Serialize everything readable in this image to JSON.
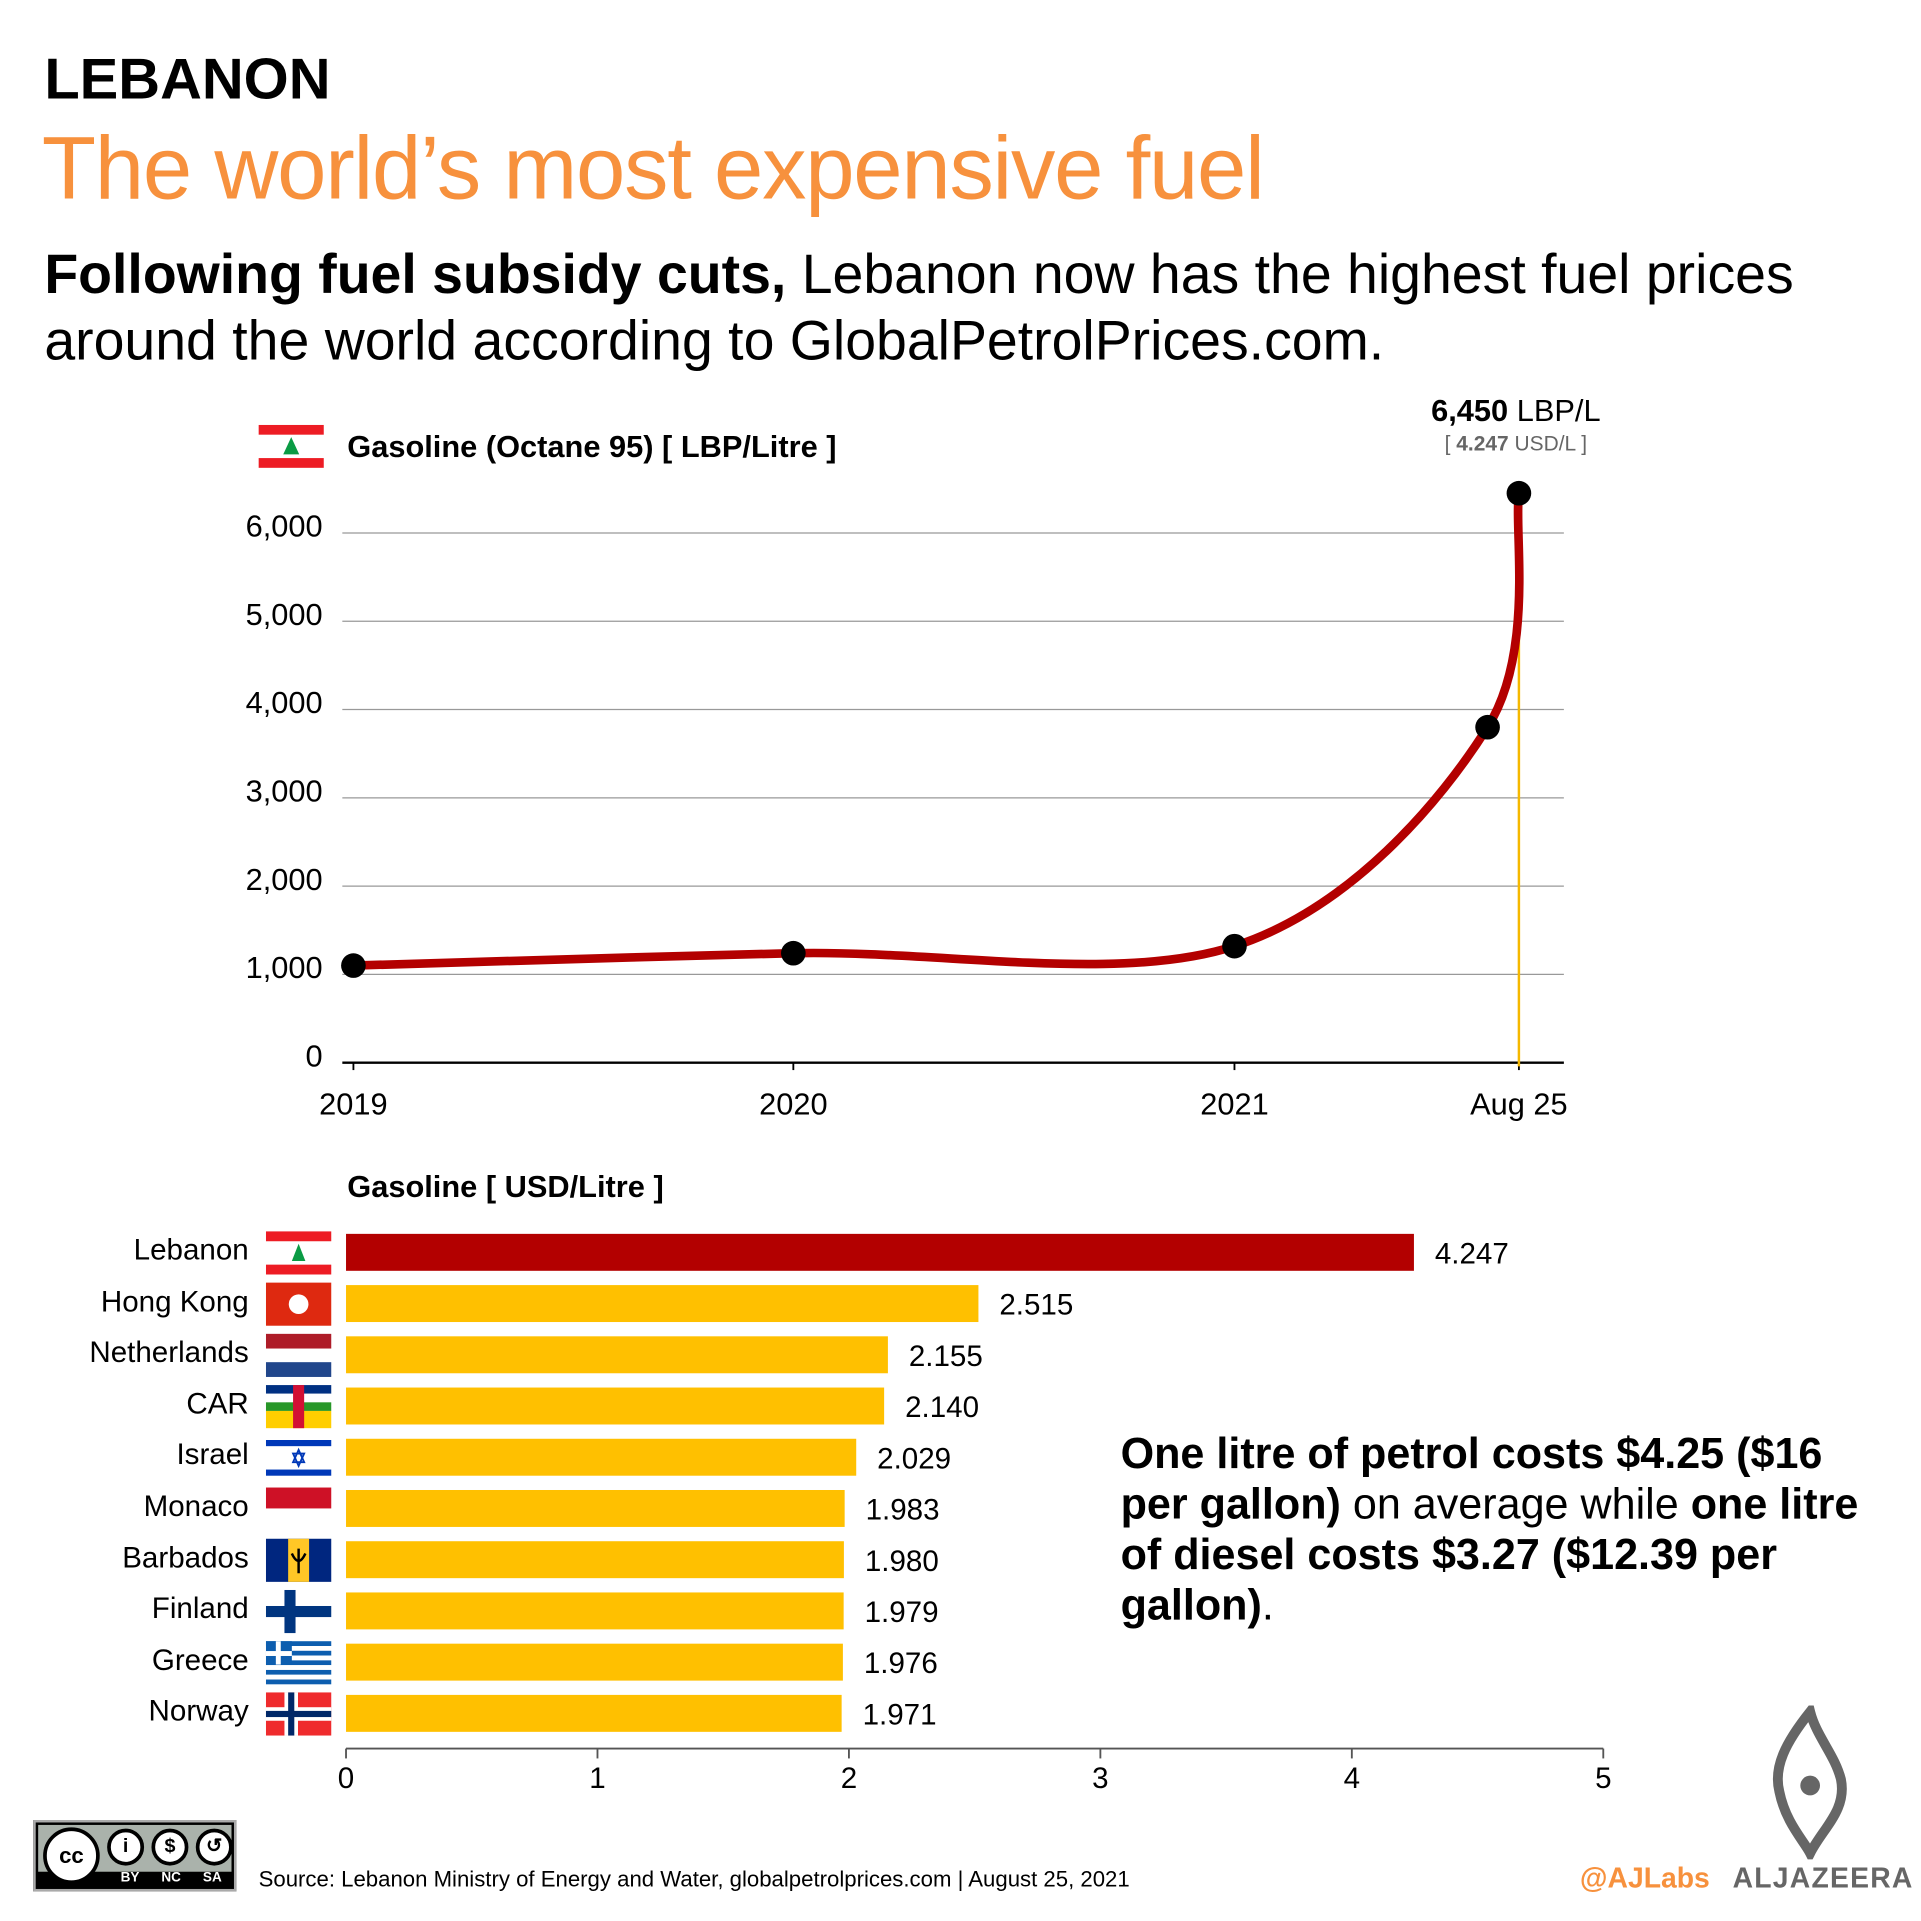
{
  "header": {
    "country": "LEBANON",
    "title": "The world’s most expensive fuel",
    "subtitle_bold": "Following fuel subsidy cuts,",
    "subtitle_rest": " Lebanon now has the highest fuel prices around the world according to GlobalPetrolPrices.com."
  },
  "colors": {
    "accent": "#f7913d",
    "line": "#b30000",
    "bar_highlight": "#b30000",
    "bar": "#ffc000",
    "marker_line": "#f5b800"
  },
  "chart_data": [
    {
      "type": "line",
      "title": "Gasoline (Octane 95) [ LBP/Litre ]",
      "x": [
        "2019-01-01",
        "2020-01-01",
        "2021-01-01",
        "2021-07-30",
        "2021-08-25"
      ],
      "values": [
        1100,
        1240,
        1320,
        3800,
        6450
      ],
      "x_tick_labels": [
        "2019",
        "2020",
        "2021",
        "Aug 25"
      ],
      "y_ticks": [
        0,
        1000,
        2000,
        3000,
        4000,
        5000,
        6000
      ],
      "y_tick_labels": [
        "0",
        "1,000",
        "2,000",
        "3,000",
        "4,000",
        "5,000",
        "6,000"
      ],
      "ylim": [
        0,
        6600
      ],
      "grid": true,
      "annotation": {
        "value": "6,450",
        "unit": "LBP/L",
        "usd_value": "4.247",
        "usd_unit": "USD/L"
      }
    },
    {
      "type": "bar",
      "orientation": "horizontal",
      "title": "Gasoline [ USD/Litre ]",
      "categories": [
        "Lebanon",
        "Hong Kong",
        "Netherlands",
        "CAR",
        "Israel",
        "Monaco",
        "Barbados",
        "Finland",
        "Greece",
        "Norway"
      ],
      "values": [
        4.247,
        2.515,
        2.155,
        2.14,
        2.029,
        1.983,
        1.98,
        1.979,
        1.976,
        1.971
      ],
      "value_labels": [
        "4.247",
        "2.515",
        "2.155",
        "2.140",
        "2.029",
        "1.983",
        "1.980",
        "1.979",
        "1.976",
        "1.971"
      ],
      "flags": [
        "lebanon-flag",
        "hong-kong-flag",
        "netherlands-flag",
        "car-flag",
        "israel-flag",
        "monaco-flag",
        "barbados-flag",
        "finland-flag",
        "greece-flag",
        "norway-flag"
      ],
      "x_ticks": [
        0,
        1,
        2,
        3,
        4,
        5
      ],
      "x_tick_labels": [
        "0",
        "1",
        "2",
        "3",
        "4",
        "5"
      ],
      "xlim": [
        0,
        5
      ]
    }
  ],
  "note": {
    "b1": "One litre of petrol costs $4.25 ($16 per gallon)",
    "t1": " on average while ",
    "b2": "one litre of diesel costs $3.27 ($12.39 per gallon)",
    "t2": "."
  },
  "footer": {
    "license": [
      "BY",
      "NC",
      "SA"
    ],
    "source": "Source: Lebanon Ministry of Energy and Water,  globalpetrolprices.com | August 25, 2021",
    "handle": "@AJLabs",
    "brand": "ALJAZEERA"
  }
}
